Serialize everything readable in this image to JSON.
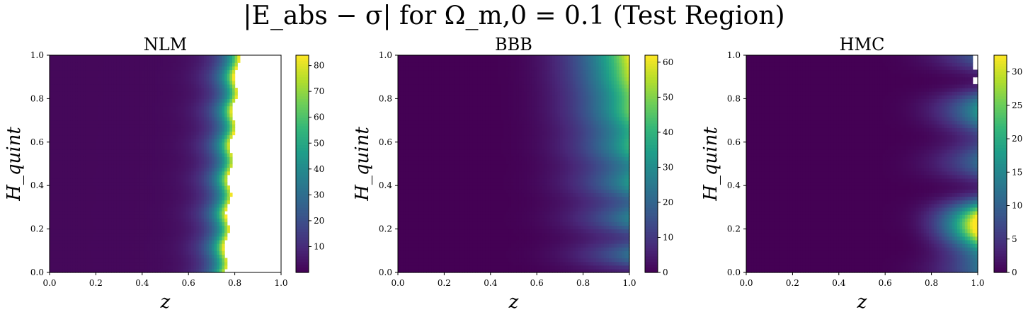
{
  "figure_title": "|E_abs − σ| for Ω_m,0 = 0.1 (Test Region)",
  "chart_data": [
    {
      "type": "heatmap",
      "title": "NLM",
      "xlabel": "z",
      "ylabel": "H_quint",
      "xlim": [
        0,
        1
      ],
      "ylim": [
        0,
        1
      ],
      "x_ticks": [
        "0.0",
        "0.2",
        "0.4",
        "0.6",
        "0.8",
        "1.0"
      ],
      "y_ticks": [
        "0.0",
        "0.2",
        "0.4",
        "0.6",
        "0.8",
        "1.0"
      ],
      "colorbar": {
        "min": 0,
        "max": 84,
        "ticks": [
          10,
          20,
          30,
          40,
          50,
          60,
          70,
          80
        ]
      },
      "colormap": "viridis",
      "description_values": {
        "cutoff_z_at_H0": 0.76,
        "cutoff_z_at_H1": 0.81,
        "max_value": 84
      }
    },
    {
      "type": "heatmap",
      "title": "BBB",
      "xlabel": "z",
      "ylabel": "H_quint",
      "xlim": [
        0,
        1
      ],
      "ylim": [
        0,
        1
      ],
      "x_ticks": [
        "0.0",
        "0.2",
        "0.4",
        "0.6",
        "0.8",
        "1.0"
      ],
      "y_ticks": [
        "0.0",
        "0.2",
        "0.4",
        "0.6",
        "0.8",
        "1.0"
      ],
      "colorbar": {
        "min": 0,
        "max": 62,
        "ticks": [
          0,
          10,
          20,
          30,
          40,
          50,
          60
        ]
      },
      "colormap": "viridis",
      "description_values": {
        "max_value": 62
      }
    },
    {
      "type": "heatmap",
      "title": "HMC",
      "xlabel": "z",
      "ylabel": "H_quint",
      "xlim": [
        0,
        1
      ],
      "ylim": [
        0,
        1
      ],
      "x_ticks": [
        "0.0",
        "0.2",
        "0.4",
        "0.6",
        "0.8",
        "1.0"
      ],
      "y_ticks": [
        "0.0",
        "0.2",
        "0.4",
        "0.6",
        "0.8",
        "1.0"
      ],
      "colorbar": {
        "min": 0,
        "max": 32.5,
        "ticks": [
          0,
          5,
          10,
          15,
          20,
          25,
          30
        ]
      },
      "colormap": "viridis",
      "description_values": {
        "max_value": 32.5
      }
    }
  ]
}
